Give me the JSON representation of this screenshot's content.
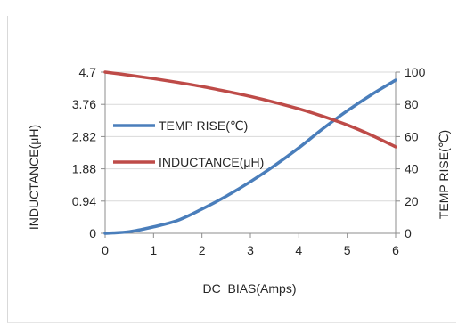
{
  "chart_data": {
    "type": "line",
    "xlabel": "DC  BIAS(Amps)",
    "ylabel_left": "INDUCTANCE(μH)",
    "ylabel_right": "TEMP RISE(℃)",
    "xlim": [
      0,
      6
    ],
    "ylim_left": [
      0,
      4.7
    ],
    "ylim_right": [
      0,
      100
    ],
    "x_ticks": [
      "0",
      "1",
      "2",
      "3",
      "4",
      "5",
      "6"
    ],
    "y_left_ticks": [
      "0",
      "0.94",
      "1.88",
      "2.82",
      "3.76",
      "4.7"
    ],
    "y_right_ticks": [
      "0",
      "20",
      "40",
      "60",
      "80",
      "100"
    ],
    "grid": "horizontal",
    "legend_position": "left-center",
    "x": [
      0,
      0.5,
      1,
      1.5,
      2,
      2.5,
      3,
      3.5,
      4,
      4.5,
      5,
      5.5,
      6
    ],
    "series": [
      {
        "name": "TEMP RISE(℃)",
        "axis": "right",
        "color": "#4a7ebb",
        "values": [
          0,
          1,
          4,
          8,
          15,
          23,
          32,
          42,
          53,
          65,
          76,
          86,
          95
        ]
      },
      {
        "name": "INDUCTANCE(μH)",
        "axis": "left",
        "color": "#be4b48",
        "values": [
          4.7,
          4.61,
          4.51,
          4.4,
          4.28,
          4.14,
          3.99,
          3.82,
          3.63,
          3.41,
          3.16,
          2.86,
          2.52
        ]
      }
    ]
  }
}
